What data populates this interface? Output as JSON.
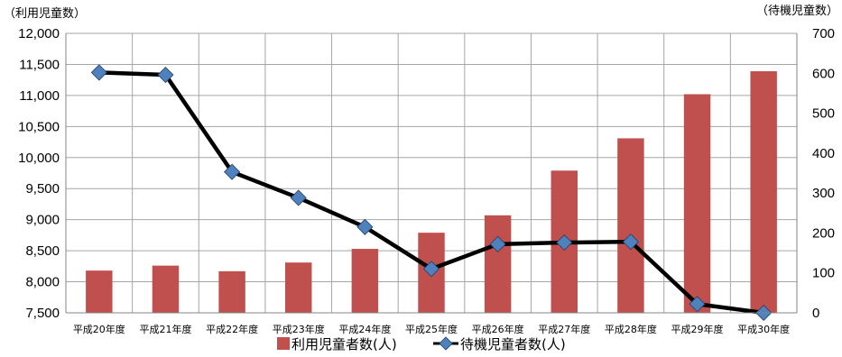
{
  "chart_data": {
    "type": "bar",
    "left_axis_title": "（利用児童数）",
    "right_axis_title": "（待機児童数）",
    "categories": [
      "平成20年度",
      "平成21年度",
      "平成22年度",
      "平成23年度",
      "平成24年度",
      "平成25年度",
      "平成26年度",
      "平成27年度",
      "平成28年度",
      "平成29年度",
      "平成30年度"
    ],
    "left_ticks": [
      "7,500",
      "8,000",
      "8,500",
      "9,000",
      "9,500",
      "10,000",
      "10,500",
      "11,000",
      "11,500",
      "12,000"
    ],
    "right_ticks": [
      "0",
      "100",
      "200",
      "300",
      "400",
      "500",
      "600",
      "700"
    ],
    "ylim_left": [
      7500,
      12000
    ],
    "ylim_right": [
      0,
      700
    ],
    "grid": true,
    "legend_position": "bottom",
    "series": [
      {
        "name": "利用児童者数(人)",
        "type": "bar",
        "axis": "left",
        "color": "#c0504d",
        "values": [
          8180,
          8260,
          8170,
          8310,
          8530,
          8790,
          9070,
          9790,
          10310,
          11020,
          11390
        ]
      },
      {
        "name": "待機児童者数(人)",
        "type": "line",
        "axis": "right",
        "color": "#000000",
        "marker_color": "#4f81bd",
        "values": [
          602,
          596,
          353,
          288,
          215,
          110,
          172,
          176,
          178,
          22,
          0
        ]
      }
    ]
  }
}
